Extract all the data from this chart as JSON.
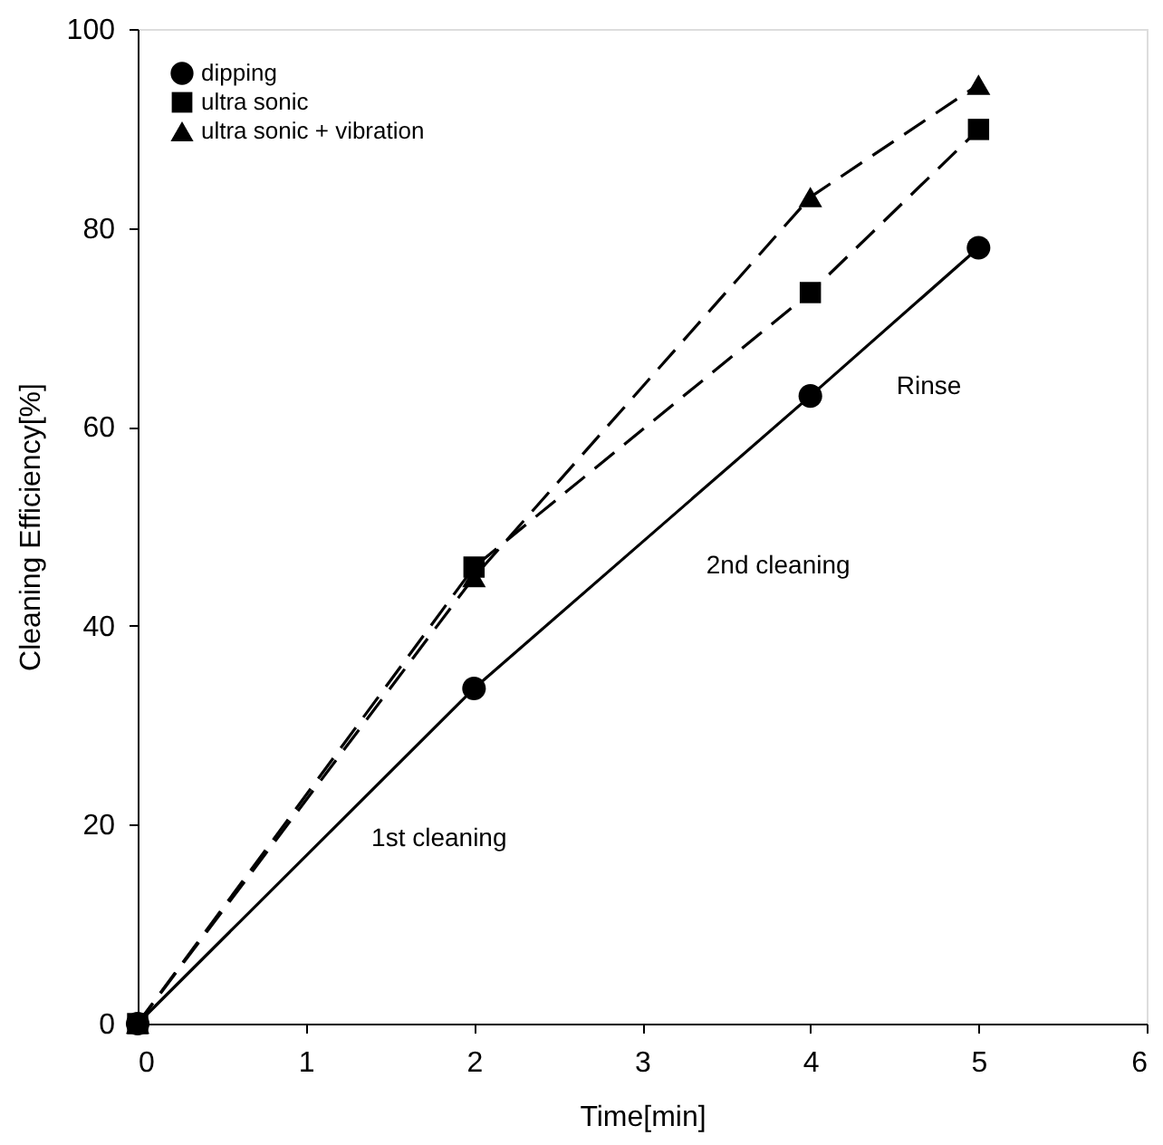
{
  "chart_data": {
    "type": "line",
    "xlabel": "Time[min]",
    "ylabel": "Cleaning Efficiency[%]",
    "x": [
      0,
      2,
      4,
      5
    ],
    "series": [
      {
        "name": "dipping",
        "color": "#000000",
        "values": [
          0,
          33.7,
          63.1,
          78.0
        ],
        "marker": "circle",
        "line_style": "solid"
      },
      {
        "name": "ultra sonic",
        "color": "#000000",
        "values": [
          0,
          45.9,
          73.5,
          89.9
        ],
        "marker": "square",
        "line_style": "dashed"
      },
      {
        "name": "ultra sonic + vibration",
        "color": "#000000",
        "values": [
          0,
          44.9,
          83.1,
          94.4
        ],
        "marker": "triangle",
        "line_style": "dashed"
      }
    ],
    "xlim": [
      0,
      6
    ],
    "xticks": [
      0,
      1,
      2,
      3,
      4,
      5,
      6
    ],
    "ylim": [
      0,
      100
    ],
    "yticks": [
      0,
      20,
      40,
      60,
      80,
      100
    ],
    "grid": false,
    "legend": "top left",
    "annotations": [
      "1st cleaning",
      "2nd cleaning",
      "Rinse"
    ]
  }
}
